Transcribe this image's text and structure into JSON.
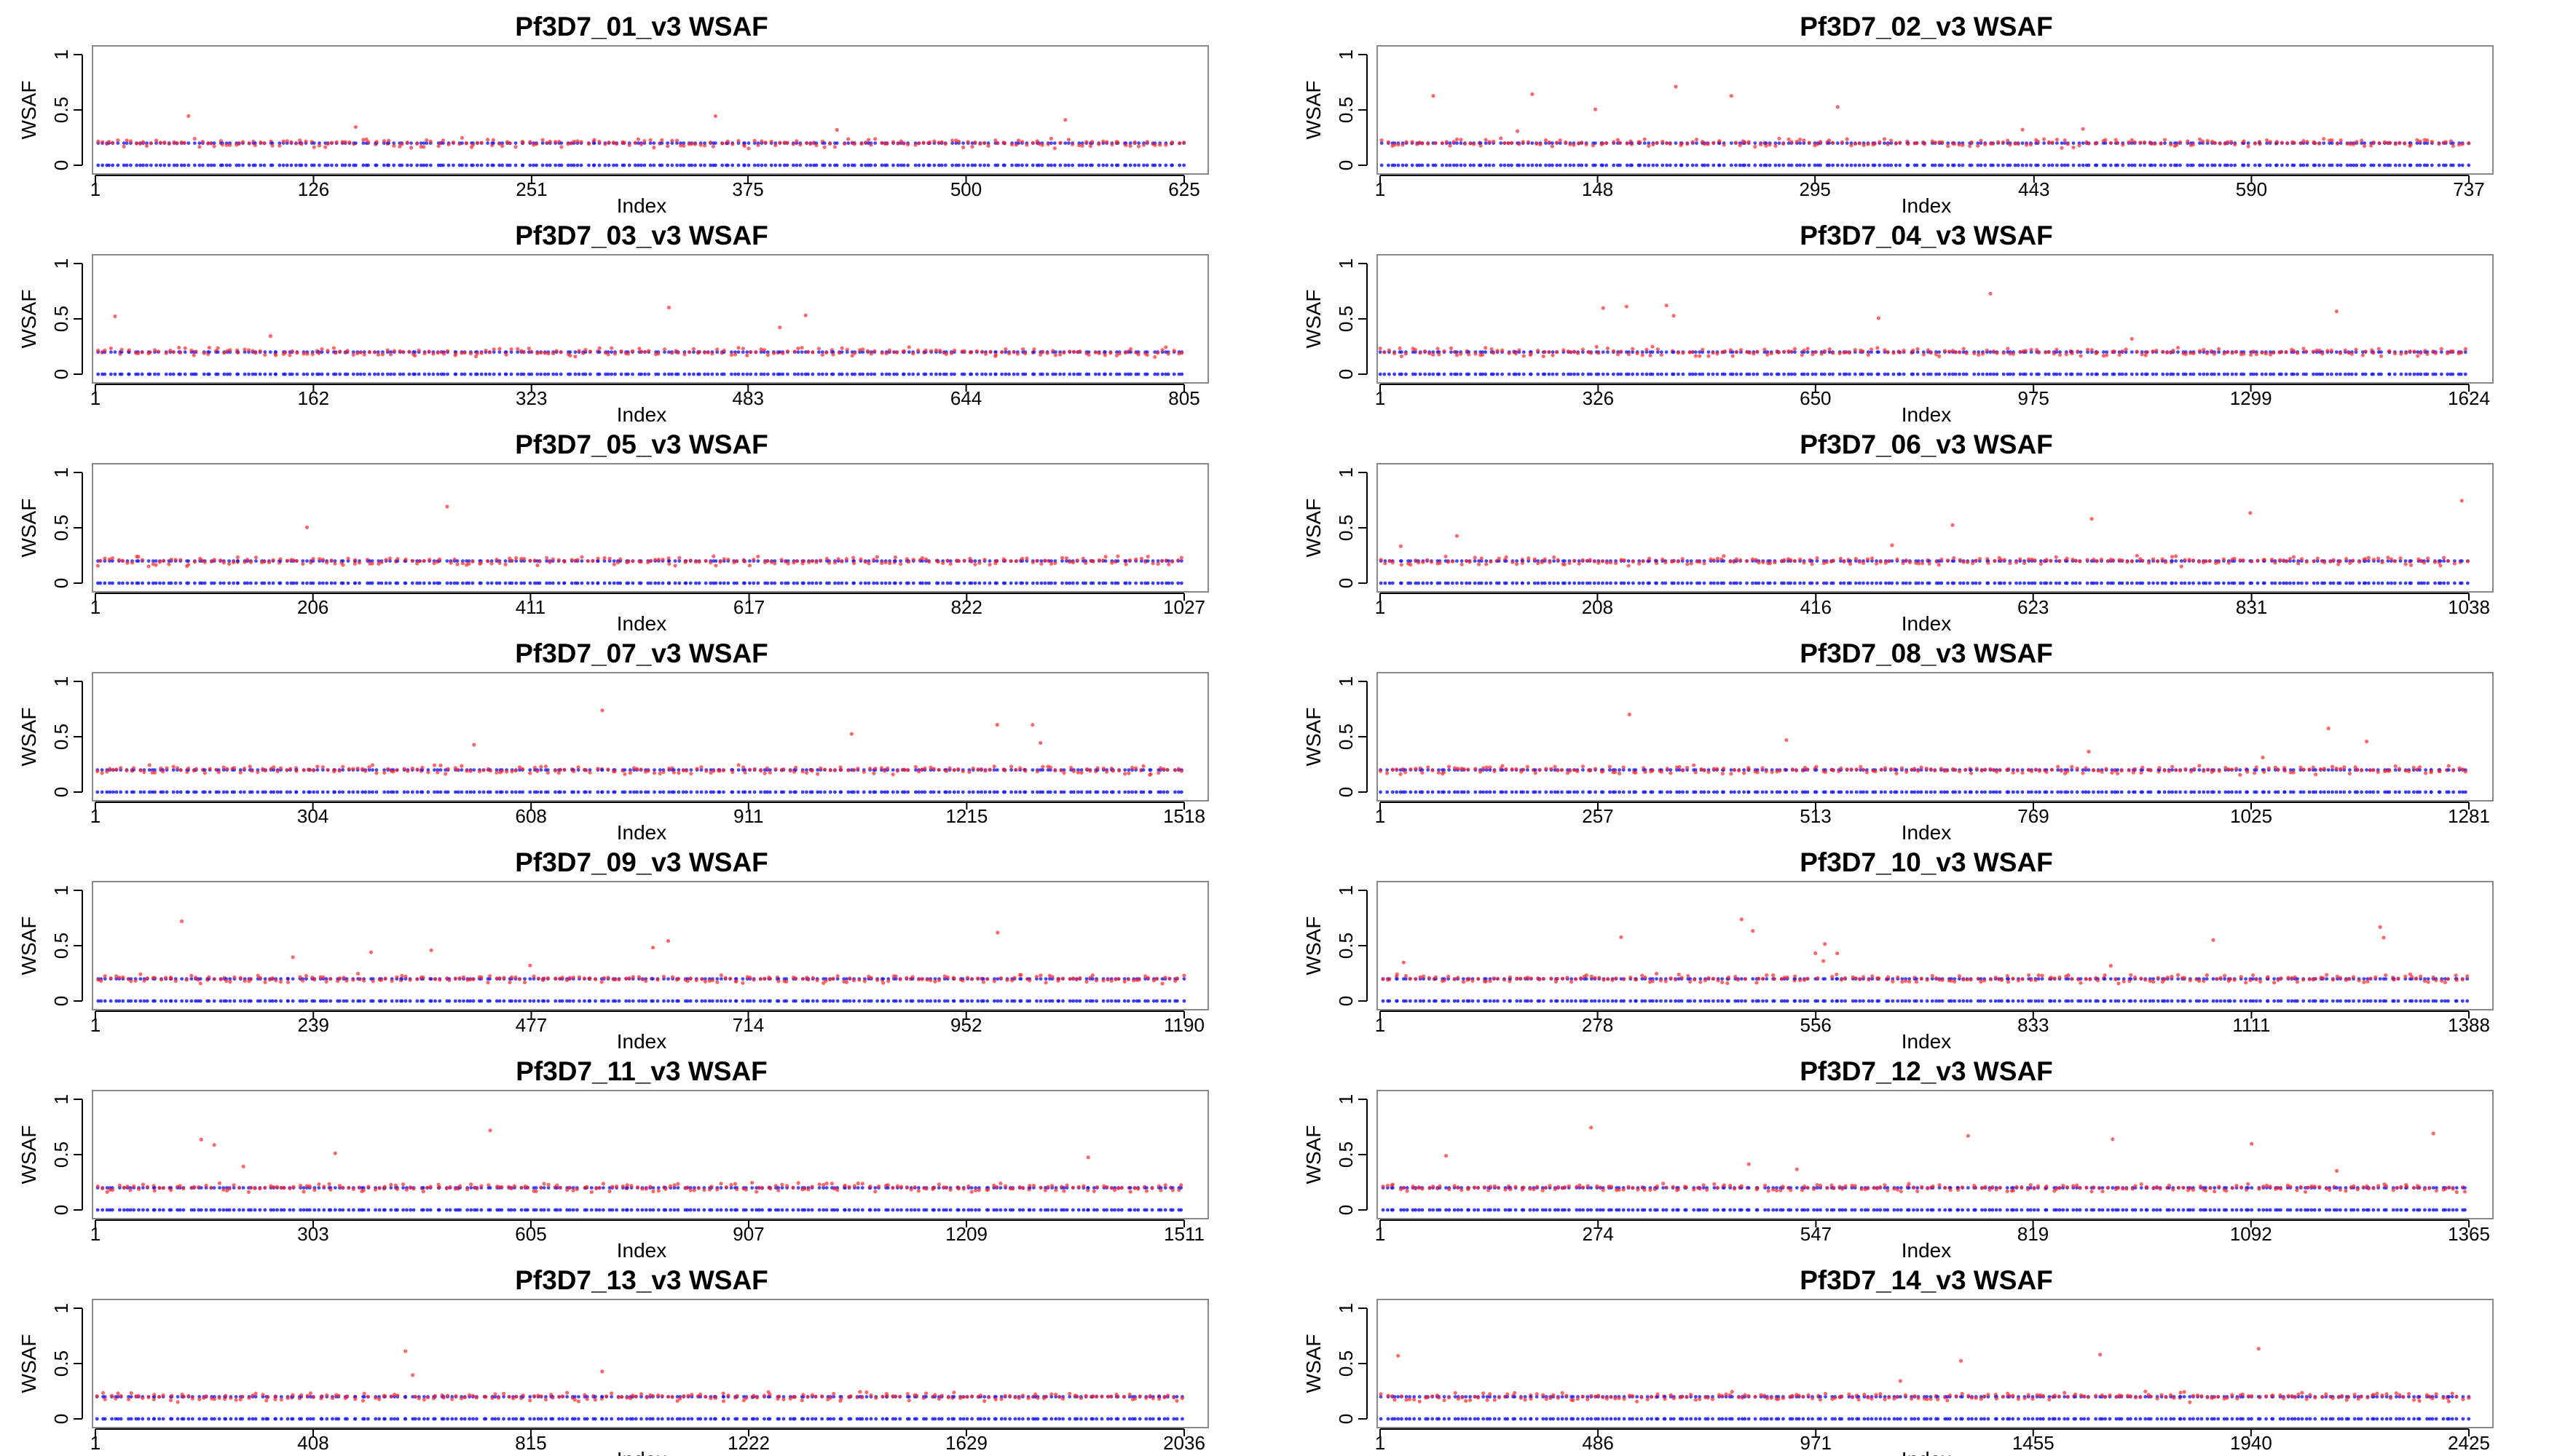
{
  "figure": {
    "type": "scatter-grid",
    "colors": {
      "observed": "#ff2a2a",
      "expected": "#1a1aff",
      "frame": "#888888"
    },
    "panels": [
      {
        "title": "Pf3D7_01_v3 WSAF",
        "n": 625,
        "xticks": [
          1,
          126,
          251,
          375,
          500,
          625
        ]
      },
      {
        "title": "Pf3D7_02_v3 WSAF",
        "n": 737,
        "xticks": [
          1,
          148,
          295,
          443,
          590,
          737
        ]
      },
      {
        "title": "Pf3D7_03_v3 WSAF",
        "n": 805,
        "xticks": [
          1,
          162,
          323,
          483,
          644,
          805
        ]
      },
      {
        "title": "Pf3D7_04_v3 WSAF",
        "n": 1624,
        "xticks": [
          1,
          326,
          650,
          975,
          1299,
          1624
        ]
      },
      {
        "title": "Pf3D7_05_v3 WSAF",
        "n": 1027,
        "xticks": [
          1,
          206,
          411,
          617,
          822,
          1027
        ]
      },
      {
        "title": "Pf3D7_06_v3 WSAF",
        "n": 1038,
        "xticks": [
          1,
          208,
          416,
          623,
          831,
          1038
        ]
      },
      {
        "title": "Pf3D7_07_v3 WSAF",
        "n": 1518,
        "xticks": [
          1,
          304,
          608,
          911,
          1215,
          1518
        ]
      },
      {
        "title": "Pf3D7_08_v3 WSAF",
        "n": 1281,
        "xticks": [
          1,
          257,
          513,
          769,
          1025,
          1281
        ]
      },
      {
        "title": "Pf3D7_09_v3 WSAF",
        "n": 1190,
        "xticks": [
          1,
          239,
          477,
          714,
          952,
          1190
        ]
      },
      {
        "title": "Pf3D7_10_v3 WSAF",
        "n": 1388,
        "xticks": [
          1,
          278,
          556,
          833,
          1111,
          1388
        ]
      },
      {
        "title": "Pf3D7_11_v3 WSAF",
        "n": 1511,
        "xticks": [
          1,
          303,
          605,
          907,
          1209,
          1511
        ]
      },
      {
        "title": "Pf3D7_12_v3 WSAF",
        "n": 1365,
        "xticks": [
          1,
          274,
          547,
          819,
          1092,
          1365
        ]
      },
      {
        "title": "Pf3D7_13_v3 WSAF",
        "n": 2036,
        "xticks": [
          1,
          408,
          815,
          1222,
          1629,
          2036
        ]
      },
      {
        "title": "Pf3D7_14_v3 WSAF",
        "n": 2425,
        "xticks": [
          1,
          486,
          971,
          1455,
          1940,
          2425
        ]
      }
    ]
  },
  "chart_data": {
    "type": "scatter",
    "xlabel": "Index",
    "ylabel": "WSAF",
    "ylim": [
      0,
      1
    ],
    "yticks": [
      "0",
      "0.5",
      "1"
    ],
    "grid": false,
    "series_note_levels": {
      "observed_baseline": 0.2,
      "expected_high": 0.2,
      "expected_low": 0.0
    }
  }
}
